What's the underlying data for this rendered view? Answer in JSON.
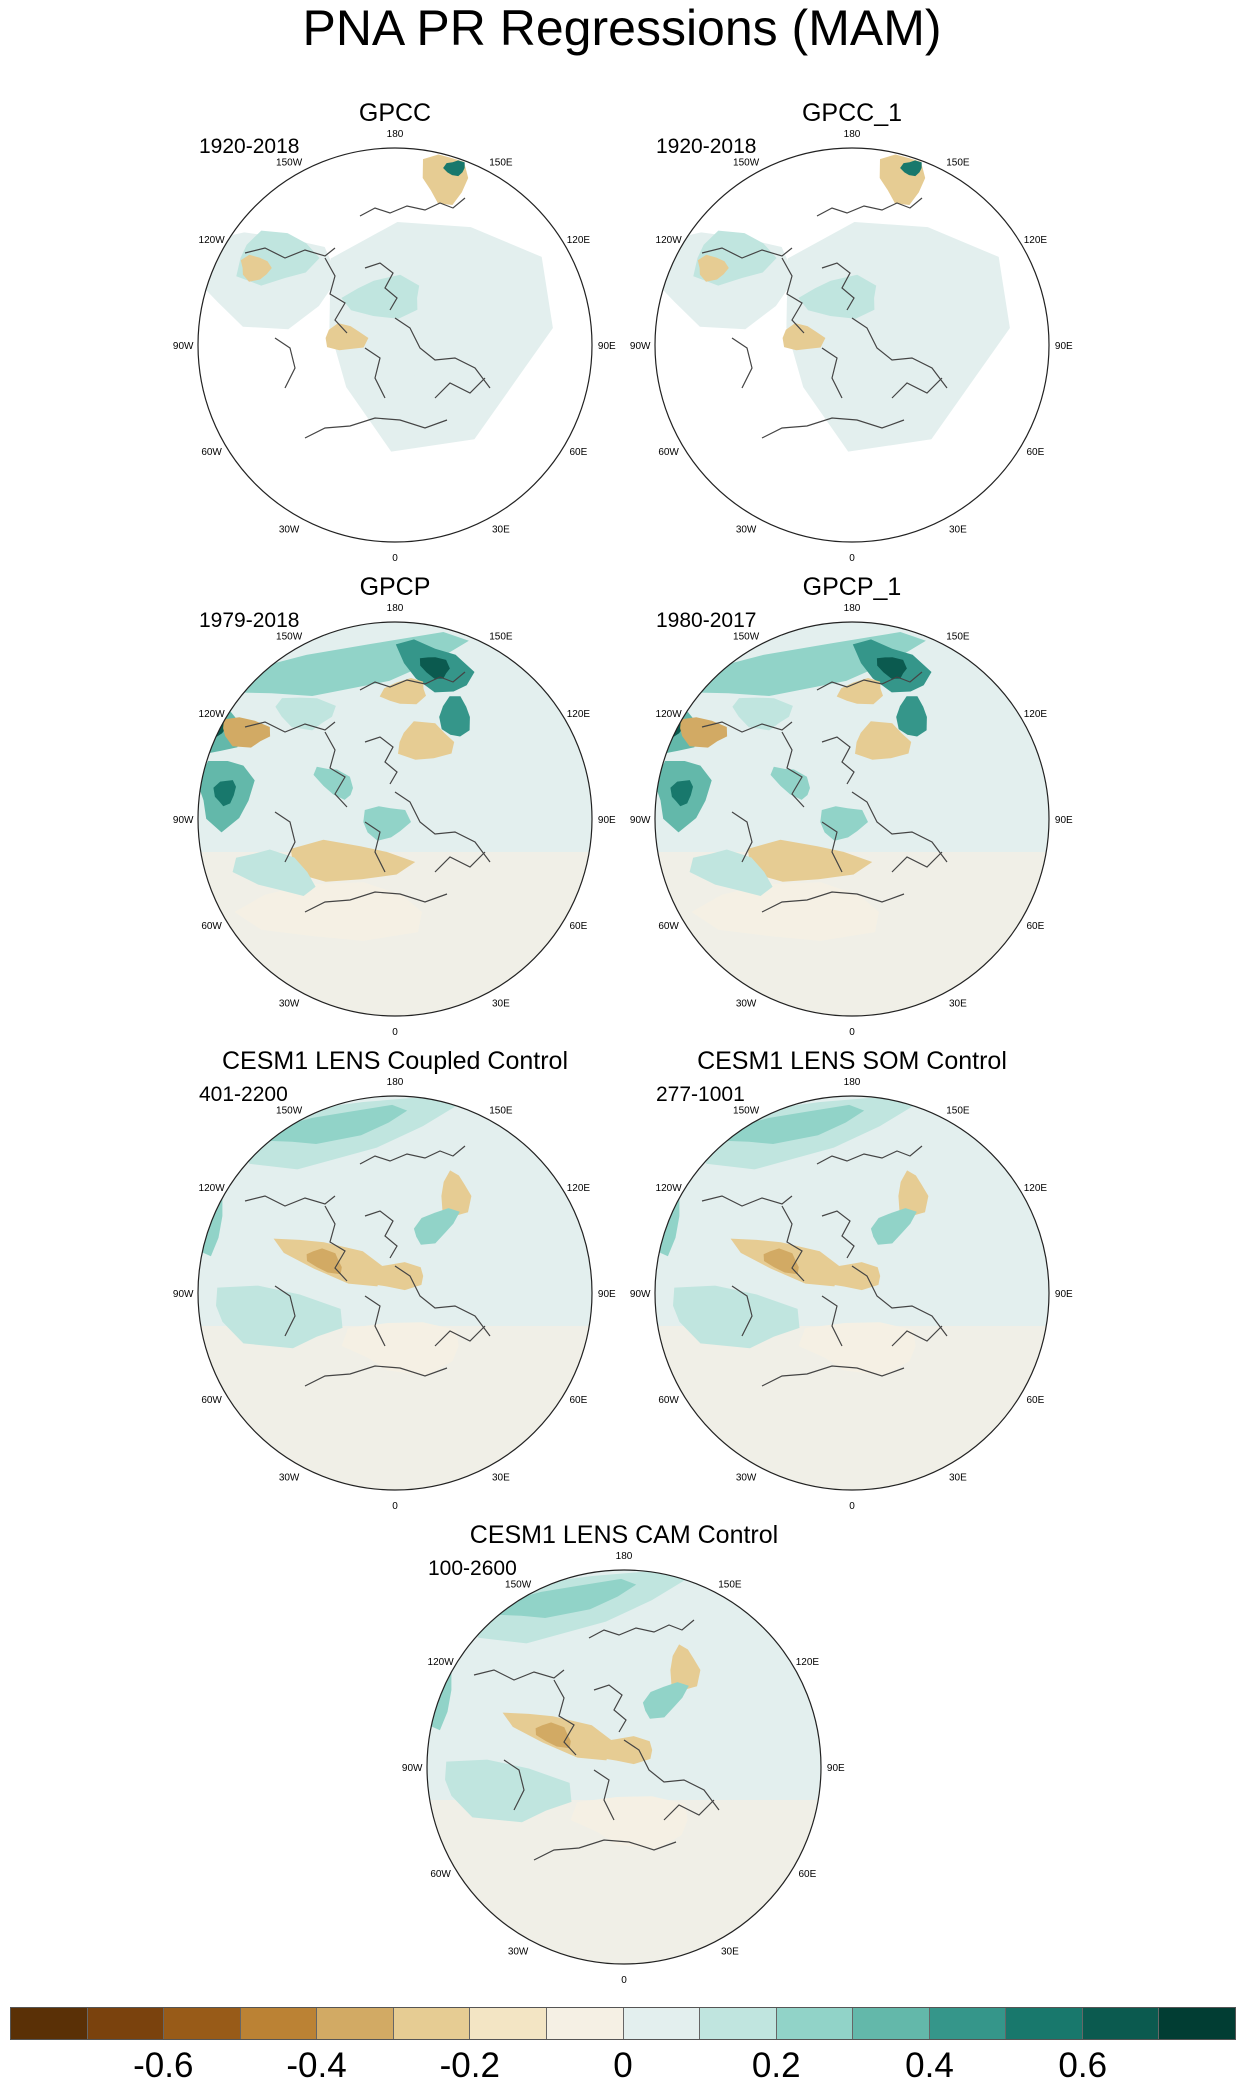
{
  "title": "PNA PR Regressions (MAM)",
  "panels": [
    {
      "id": "gpcc",
      "title": "GPCC",
      "period": "1920-2018",
      "style": "gpcc"
    },
    {
      "id": "gpcc1",
      "title": "GPCC_1",
      "period": "1920-2018",
      "style": "gpcc"
    },
    {
      "id": "gpcp",
      "title": "GPCP",
      "period": "1979-2018",
      "style": "gpcp"
    },
    {
      "id": "gpcp1",
      "title": "GPCP_1",
      "period": "1980-2017",
      "style": "gpcp"
    },
    {
      "id": "coupled",
      "title": "CESM1 LENS Coupled Control",
      "period": "401-2200",
      "style": "model"
    },
    {
      "id": "som",
      "title": "CESM1 LENS SOM Control",
      "period": "277-1001",
      "style": "model"
    },
    {
      "id": "cam",
      "title": "CESM1 LENS CAM Control",
      "period": "100-2600",
      "style": "model"
    }
  ],
  "longitude_labels": [
    "180",
    "150E",
    "120E",
    "90E",
    "60E",
    "30E",
    "0",
    "30W",
    "60W",
    "90W",
    "120W",
    "150W"
  ],
  "colorbar": {
    "colors": [
      "#5a3006",
      "#7a420d",
      "#985b18",
      "#bb8234",
      "#d2aa64",
      "#e6cc93",
      "#f3e5c4",
      "#f5f0e4",
      "#e3efee",
      "#c0e5df",
      "#91d3c8",
      "#63b8aa",
      "#35968a",
      "#18786c",
      "#0b5a4f",
      "#013d33"
    ],
    "labels": [
      "-0.6",
      "-0.4",
      "-0.2",
      "0",
      "0.2",
      "0.4",
      "0.6"
    ]
  }
}
